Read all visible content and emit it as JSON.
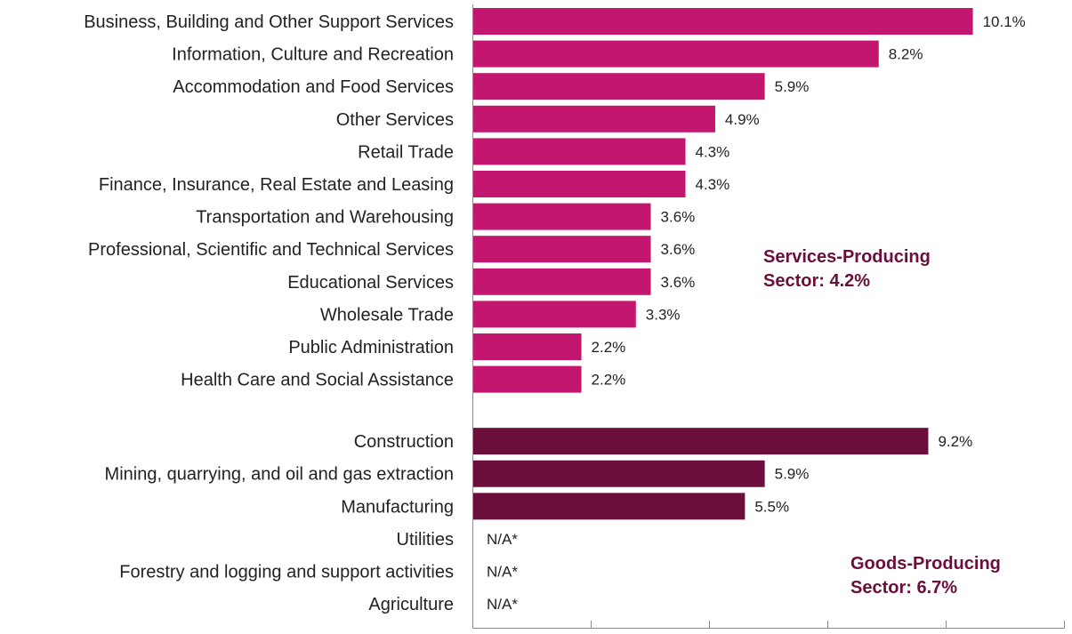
{
  "colors": {
    "services": "#c2166f",
    "goods": "#6b0e3c",
    "axis": "#8c8c8c",
    "text": "#222222",
    "sector_text": "#6b0e3c"
  },
  "chart_data": {
    "type": "bar",
    "orientation": "horizontal",
    "title": "",
    "xlabel": "",
    "ylabel": "",
    "xlim": [
      0,
      12.5
    ],
    "grid": false,
    "series": [
      {
        "group": "services",
        "categories": [
          "Business, Building and Other Support Services",
          "Information, Culture and Recreation",
          "Accommodation and Food Services",
          "Other Services",
          "Retail Trade",
          "Finance, Insurance, Real Estate and Leasing",
          "Transportation and Warehousing",
          "Professional, Scientific and Technical Services",
          "Educational Services",
          "Wholesale Trade",
          "Public Administration",
          "Health Care and Social Assistance"
        ],
        "values": [
          10.1,
          8.2,
          5.9,
          4.9,
          4.3,
          4.3,
          3.6,
          3.6,
          3.6,
          3.3,
          2.2,
          2.2
        ],
        "labels": [
          "10.1%",
          "8.2%",
          "5.9%",
          "4.9%",
          "4.3%",
          "4.3%",
          "3.6%",
          "3.6%",
          "3.6%",
          "3.3%",
          "2.2%",
          "2.2%"
        ]
      },
      {
        "group": "goods",
        "categories": [
          "Construction",
          "Mining, quarrying, and oil and gas extraction",
          "Manufacturing",
          "Utilities",
          "Forestry and logging and support activities",
          "Agriculture"
        ],
        "values": [
          9.2,
          5.9,
          5.5,
          null,
          null,
          null
        ],
        "labels": [
          "9.2%",
          "5.9%",
          "5.5%",
          "N/A*",
          "N/A*",
          "N/A*"
        ]
      }
    ],
    "annotations": [
      {
        "group": "services",
        "lines": [
          "Services-Producing",
          "Sector: 4.2%"
        ]
      },
      {
        "group": "goods",
        "lines": [
          "Goods-Producing",
          "Sector: 6.7%"
        ]
      }
    ]
  }
}
